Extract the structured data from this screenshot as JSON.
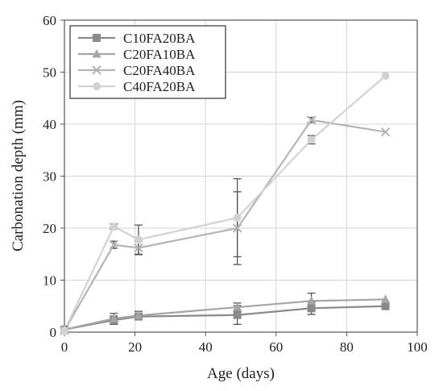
{
  "chart_data": {
    "type": "line",
    "title": "",
    "xlabel": "Age (days)",
    "ylabel": "Carbonation depth (mm)",
    "xlim": [
      0,
      100
    ],
    "ylim": [
      0,
      60
    ],
    "xticks": [
      0,
      20,
      40,
      60,
      80,
      100
    ],
    "yticks": [
      0,
      10,
      20,
      30,
      40,
      50,
      60
    ],
    "grid": true,
    "legend_position": "top-left",
    "series": [
      {
        "name": "C10FA20BA",
        "marker": "square",
        "color": "#8a8a8a",
        "x": [
          0,
          14,
          21,
          49,
          70,
          91
        ],
        "y": [
          0.5,
          2.3,
          3.0,
          3.3,
          4.6,
          5.0
        ],
        "error": [
          0,
          0.8,
          0.6,
          1.8,
          1.2,
          0
        ]
      },
      {
        "name": "C20FA10BA",
        "marker": "triangle",
        "color": "#a5a5a5",
        "x": [
          0,
          14,
          21,
          49,
          70,
          91
        ],
        "y": [
          0.5,
          2.6,
          3.2,
          4.8,
          6.0,
          6.3
        ],
        "error": [
          0,
          1.0,
          0.8,
          0.8,
          1.5,
          0
        ]
      },
      {
        "name": "C20FA40BA",
        "marker": "x",
        "color": "#b4b4b4",
        "x": [
          0,
          14,
          21,
          49,
          70,
          91
        ],
        "y": [
          0.3,
          16.8,
          16.2,
          20.0,
          40.8,
          38.5
        ],
        "error": [
          0,
          0.7,
          1.3,
          7.0,
          0.5,
          0
        ]
      },
      {
        "name": "C40FA20BA",
        "marker": "circle",
        "color": "#d2d2d2",
        "x": [
          0,
          14,
          21,
          49,
          70,
          91
        ],
        "y": [
          0.3,
          20.3,
          17.8,
          22.0,
          37.0,
          49.3
        ],
        "error": [
          0,
          0.5,
          2.8,
          7.5,
          0.8,
          0
        ]
      }
    ]
  }
}
